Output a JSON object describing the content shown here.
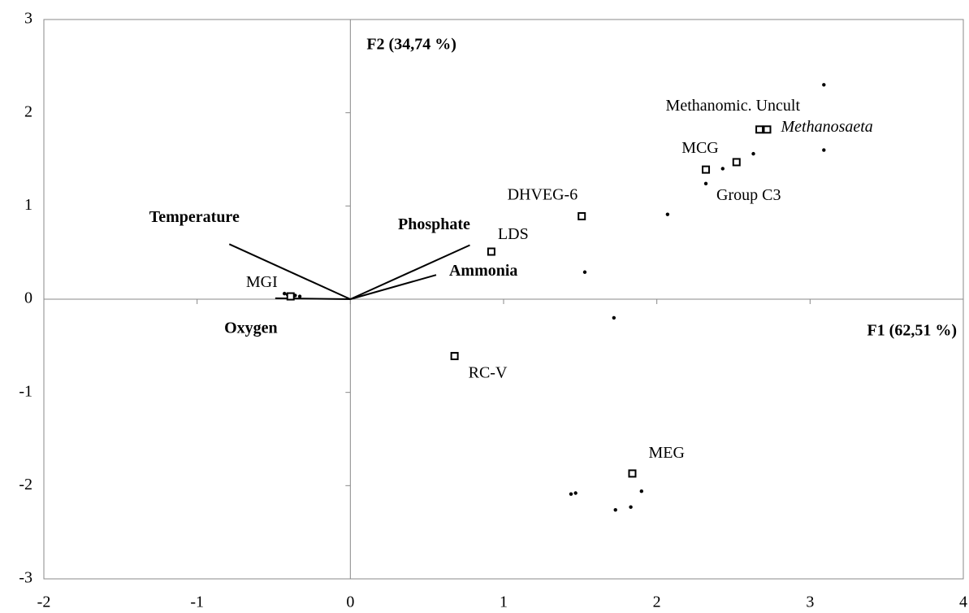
{
  "chart_data": {
    "type": "scatter",
    "xlabel": "F1 (62,51 %)",
    "ylabel": "F2 (34,74 %)",
    "xlim": [
      -2,
      4
    ],
    "xticks": [
      -2,
      -1,
      0,
      1,
      2,
      3,
      4
    ],
    "ylim": [
      -3,
      3
    ],
    "yticks": [
      -3,
      -2,
      -1,
      0,
      1,
      2,
      3
    ],
    "color": "#000000",
    "samples": {
      "x": [
        3.09,
        3.09,
        2.63,
        2.43,
        2.32,
        2.07,
        1.53,
        1.72,
        1.9,
        1.83,
        1.73,
        1.44,
        1.47,
        -0.43,
        -0.41,
        -0.36,
        -0.33,
        -0.38
      ],
      "y": [
        2.3,
        1.6,
        1.56,
        1.4,
        1.24,
        0.91,
        0.29,
        -0.2,
        -2.06,
        -2.23,
        -2.26,
        -2.09,
        -2.08,
        0.06,
        0.05,
        0.04,
        0.03,
        0.02
      ]
    },
    "taxa": {
      "labels": [
        "Methanomic. Uncult",
        "Methanosaeta",
        "MCG",
        "Group C3",
        "DHVEG-6",
        "LDS",
        "MGI",
        "RC-V",
        "MEG"
      ],
      "italic": [
        false,
        true,
        false,
        false,
        false,
        false,
        false,
        false,
        false
      ],
      "x": [
        2.67,
        2.72,
        2.52,
        2.32,
        1.51,
        0.92,
        -0.39,
        0.68,
        1.84
      ],
      "y": [
        1.82,
        1.82,
        1.47,
        1.39,
        0.89,
        0.51,
        0.03,
        -0.61,
        -1.87
      ]
    },
    "vectors": {
      "labels": [
        "Temperature",
        "Phosphate",
        "Ammonia",
        "Oxygen"
      ],
      "x": [
        -0.79,
        0.78,
        0.56,
        -0.49
      ],
      "y": [
        0.59,
        0.58,
        0.26,
        0.01
      ]
    }
  }
}
